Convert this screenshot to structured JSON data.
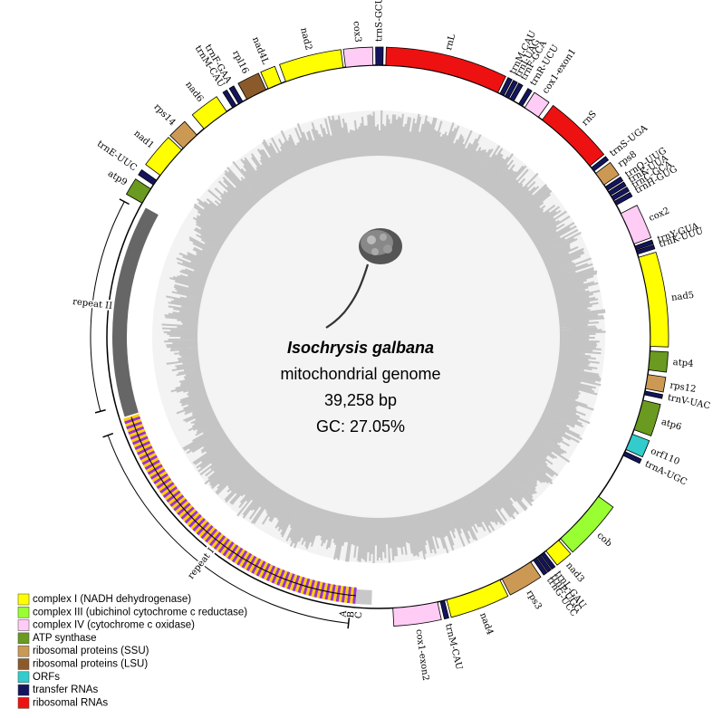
{
  "header": {
    "species": "Isochrysis galbana",
    "subtitle": "mitochondrial genome",
    "size": "39,258 bp",
    "gc": "GC:  27.05%"
  },
  "genes": [
    {
      "label": "trnS-GCU"
    },
    {
      "label": "rnL"
    },
    {
      "label": "trnM-CAU"
    },
    {
      "label": "trnI-UAG"
    },
    {
      "label": "trnF-GCA"
    },
    {
      "label": "trnR-UCU"
    },
    {
      "label": "cox1-exon1"
    },
    {
      "label": "rnS"
    },
    {
      "label": "trnS-UGA"
    },
    {
      "label": "rps8"
    },
    {
      "label": "trnQ-UUG"
    },
    {
      "label": "trnK-UUA"
    },
    {
      "label": "trnC-GCA"
    },
    {
      "label": "trnH-GUG"
    },
    {
      "label": "cox2"
    },
    {
      "label": "trnY-GUA"
    },
    {
      "label": "trnK-UUU"
    },
    {
      "label": "nad5"
    },
    {
      "label": "atp4"
    },
    {
      "label": "rps12"
    },
    {
      "label": "trnV-UAC"
    },
    {
      "label": "atp6"
    },
    {
      "label": "orf110"
    },
    {
      "label": "trnA-UGC"
    },
    {
      "label": "cob"
    },
    {
      "label": "nad3"
    },
    {
      "label": "trnL-GAU"
    },
    {
      "label": "trnP-UGG"
    },
    {
      "label": "trnG-UCC"
    },
    {
      "label": "rps3"
    },
    {
      "label": "nad4"
    },
    {
      "label": "trnM-CAU"
    },
    {
      "label": "cox1-exon2"
    },
    {
      "label": "atp9"
    },
    {
      "label": "trnE-UUC"
    },
    {
      "label": "nad1"
    },
    {
      "label": "rps14"
    },
    {
      "label": "nad6"
    },
    {
      "label": "trnM-CAU"
    },
    {
      "label": "trnF-GAA"
    },
    {
      "label": "rpl16"
    },
    {
      "label": "nad4L"
    },
    {
      "label": "nad2"
    },
    {
      "label": "cox3"
    }
  ],
  "repeats": [
    {
      "label": "repeat II"
    },
    {
      "label": "repeat I"
    }
  ],
  "repeat_parts": [
    "C",
    "B",
    "A"
  ],
  "legend": [
    {
      "label": "complex I (NADH dehydrogenase)",
      "color": "#ffff00"
    },
    {
      "label": "complex III (ubichinol cytochrome c reductase)",
      "color": "#99ff33"
    },
    {
      "label": "complex IV (cytochrome c oxidase)",
      "color": "#ffccf5"
    },
    {
      "label": "ATP synthase",
      "color": "#6a9a1f"
    },
    {
      "label": "ribosomal proteins (SSU)",
      "color": "#cc9955"
    },
    {
      "label": "ribosomal proteins (LSU)",
      "color": "#8b5a2b"
    },
    {
      "label": "ORFs",
      "color": "#33cccc"
    },
    {
      "label": "transfer RNAs",
      "color": "#14145e"
    },
    {
      "label": "ribosomal RNAs",
      "color": "#ee1111"
    }
  ]
}
